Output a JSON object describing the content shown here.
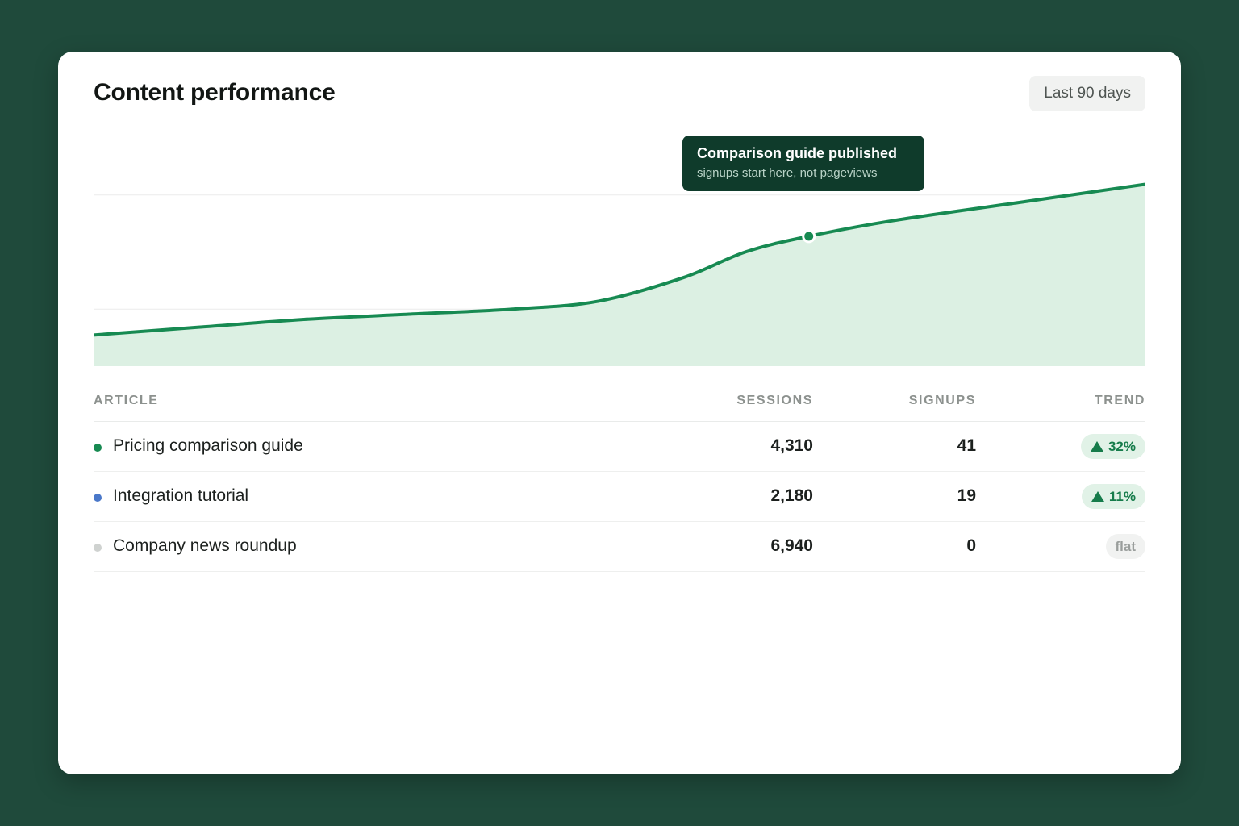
{
  "header": {
    "title": "Content performance",
    "range_label": "Last 90 days"
  },
  "annotation": {
    "title": "Comparison guide published",
    "subtitle": "signups start here, not pageviews"
  },
  "colors": {
    "line": "#178a52",
    "area": "#dcf0e3",
    "grid": "#ececec",
    "tooltip_bg": "#0f3b2b"
  },
  "chart_data": {
    "type": "area",
    "title": "",
    "xlabel": "",
    "ylabel": "",
    "grid": true,
    "x": [
      0,
      10,
      20,
      30,
      40,
      48,
      56,
      62,
      68,
      76,
      88,
      100
    ],
    "values": [
      12,
      15,
      18,
      20,
      22,
      25,
      34,
      44,
      50,
      56,
      63,
      70
    ],
    "ylim": [
      0,
      90
    ],
    "annotation_x": 68
  },
  "table": {
    "headers": {
      "article": "ARTICLE",
      "sessions": "SESSIONS",
      "signups": "SIGNUPS",
      "trend": "TREND"
    },
    "rows": [
      {
        "article": "Pricing comparison guide",
        "sessions": "4,310",
        "signups": "41",
        "trend": "32%",
        "trend_dir": "up",
        "dot_color": "#178a52"
      },
      {
        "article": "Integration tutorial",
        "sessions": "2,180",
        "signups": "19",
        "trend": "11%",
        "trend_dir": "up",
        "dot_color": "#4a78c9"
      },
      {
        "article": "Company news roundup",
        "sessions": "6,940",
        "signups": "0",
        "trend": "flat",
        "trend_dir": "flat",
        "dot_color": "#cfd2d0"
      }
    ]
  }
}
